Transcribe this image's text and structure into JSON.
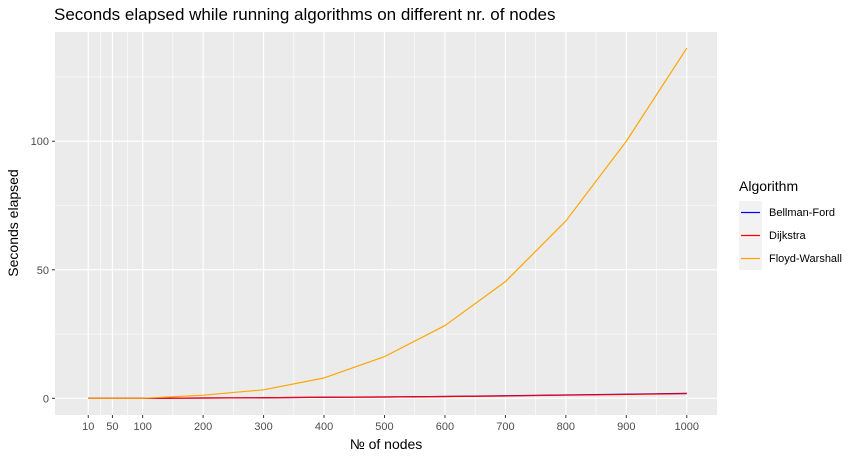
{
  "chart_data": {
    "type": "line",
    "title": "Seconds elapsed while running algorithms on different nr. of nodes",
    "xlabel": "№ of nodes",
    "ylabel": "Seconds elapsed",
    "x": [
      10,
      50,
      100,
      200,
      300,
      400,
      500,
      600,
      700,
      800,
      900,
      1000
    ],
    "xticks": [
      10,
      50,
      100,
      200,
      300,
      400,
      500,
      600,
      700,
      800,
      900,
      1000
    ],
    "yticks": [
      0,
      50,
      100
    ],
    "xlim": [
      -45,
      1050
    ],
    "ylim": [
      -6.5,
      142.5
    ],
    "grid": true,
    "legend": {
      "title": "Algorithm",
      "position": "right"
    },
    "series": [
      {
        "name": "Bellman-Ford",
        "color": "#0000ff",
        "values": [
          0,
          0,
          0,
          0.1,
          0.2,
          0.4,
          0.5,
          0.7,
          1.0,
          1.3,
          1.6,
          1.9
        ]
      },
      {
        "name": "Dijkstra",
        "color": "#ff0000",
        "values": [
          0,
          0,
          0,
          0.1,
          0.2,
          0.4,
          0.5,
          0.7,
          0.9,
          1.2,
          1.5,
          1.8
        ]
      },
      {
        "name": "Floyd-Warshall",
        "color": "#ffa500",
        "values": [
          0,
          0,
          0,
          1.2,
          3.3,
          7.9,
          16.2,
          28.3,
          45.4,
          69.0,
          100.0,
          136.2
        ]
      }
    ]
  }
}
